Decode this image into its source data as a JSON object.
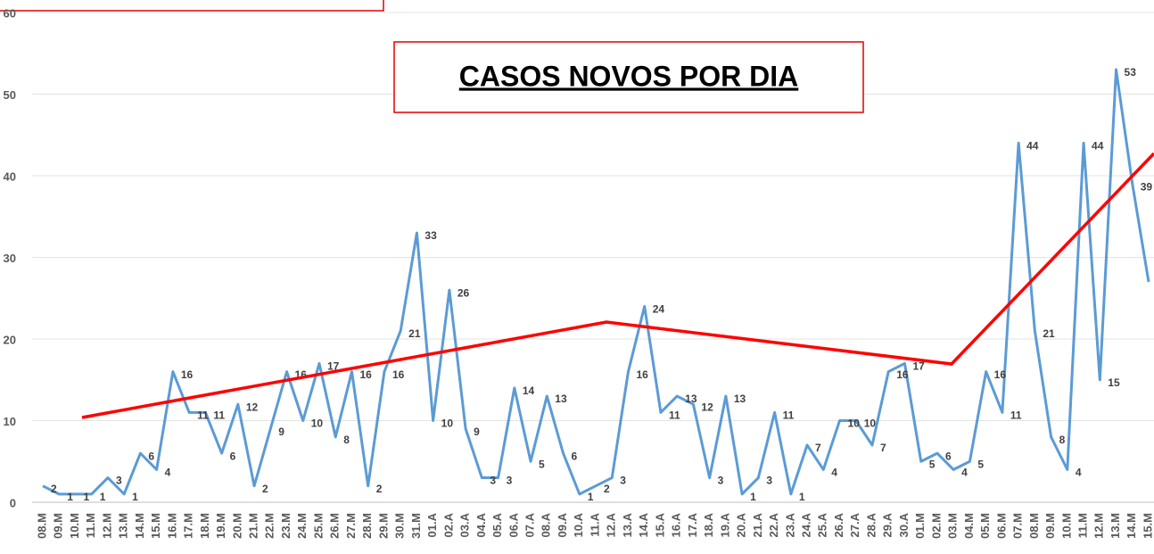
{
  "chart_data": {
    "type": "line",
    "title": "CASOS NOVOS POR DIA",
    "categories": [
      "08.M",
      "09.M",
      "10.M",
      "11.M",
      "12.M",
      "13.M",
      "14.M",
      "15.M",
      "16.M",
      "17.M",
      "18.M",
      "19.M",
      "20.M",
      "21.M",
      "22.M",
      "23.M",
      "24.M",
      "25.M",
      "26.M",
      "27.M",
      "28.M",
      "29.M",
      "30.M",
      "31.M",
      "01.A",
      "02.A",
      "03.A",
      "04.A",
      "05.A",
      "06.A",
      "07.A",
      "08.A",
      "09.A",
      "10.A",
      "11.A",
      "12.A",
      "13.A",
      "14.A",
      "15.A",
      "16.A",
      "17.A",
      "18.A",
      "19.A",
      "20.A",
      "21.A",
      "22.A",
      "23.A",
      "24.A",
      "25.A",
      "26.A",
      "27.A",
      "28.A",
      "29.A",
      "30.A",
      "01.M",
      "02.M",
      "03.M",
      "04.M",
      "05.M",
      "06.M",
      "07.M",
      "08.M",
      "09.M",
      "10.M",
      "11.M",
      "12.M",
      "13.M",
      "14.M",
      "15.M"
    ],
    "series": [
      {
        "color": "#5b9bd5",
        "values": [
          2,
          1,
          1,
          1,
          3,
          1,
          6,
          4,
          16,
          11,
          11,
          6,
          12,
          2,
          9,
          16,
          10,
          17,
          8,
          16,
          2,
          16,
          21,
          33,
          10,
          26,
          9,
          3,
          3,
          14,
          5,
          13,
          6,
          1,
          2,
          3,
          16,
          24,
          11,
          13,
          12,
          3,
          13,
          1,
          3,
          11,
          1,
          7,
          4,
          10,
          10,
          7,
          16,
          17,
          5,
          6,
          4,
          5,
          16,
          11,
          44,
          21,
          8,
          4,
          44,
          15,
          53,
          39,
          27
        ]
      }
    ],
    "ylim": [
      0,
      60
    ],
    "yticks": [
      0,
      10,
      20,
      30,
      40,
      50,
      60
    ],
    "grid": true
  }
}
